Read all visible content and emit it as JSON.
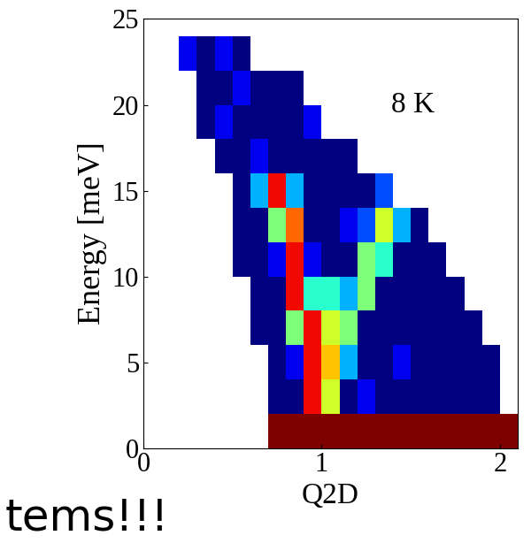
{
  "chart_data": {
    "type": "heatmap",
    "x_label": "Q2D",
    "y_label": "Energy [meV]",
    "annotations": [
      "8 K"
    ],
    "caption": "tems!!!",
    "color": "jet",
    "xlim": [
      0,
      2.1
    ],
    "ylim": [
      0,
      25
    ],
    "xticks": [
      0,
      1,
      2
    ],
    "yticks": [
      0,
      5,
      10,
      15,
      20,
      25
    ],
    "x_edges": [
      0,
      0.1,
      0.2,
      0.3,
      0.4,
      0.5,
      0.6,
      0.7,
      0.8,
      0.9,
      1.0,
      1.1,
      1.2,
      1.3,
      1.4,
      1.5,
      1.6,
      1.7,
      1.8,
      1.9,
      2.0,
      2.1
    ],
    "y_edges": [
      0,
      2,
      4,
      6,
      8,
      10,
      12,
      14,
      16,
      18,
      20,
      22,
      24
    ],
    "color_range": [
      0,
      10
    ],
    "cells": [
      [
        null,
        null,
        null,
        null,
        null,
        null,
        null,
        10,
        10,
        10,
        10,
        10,
        10,
        10,
        10,
        10,
        10,
        10,
        10,
        10,
        10
      ],
      [
        null,
        null,
        null,
        null,
        null,
        null,
        null,
        0,
        0,
        9,
        6,
        0,
        1,
        0,
        0,
        0,
        0,
        0,
        0,
        0,
        null
      ],
      [
        null,
        null,
        null,
        null,
        null,
        null,
        null,
        0,
        1,
        9,
        7,
        3,
        0,
        0,
        1,
        0,
        0,
        0,
        0,
        0,
        null
      ],
      [
        null,
        null,
        null,
        null,
        null,
        null,
        0,
        0,
        5,
        9,
        6,
        5,
        0,
        0,
        0,
        0,
        0,
        0,
        0,
        null,
        null
      ],
      [
        null,
        null,
        null,
        null,
        null,
        null,
        0,
        0,
        9,
        4,
        4,
        3,
        5,
        0,
        0,
        0,
        0,
        0,
        null,
        null,
        null
      ],
      [
        null,
        null,
        null,
        null,
        null,
        0,
        0,
        1,
        9,
        1,
        0,
        0,
        5,
        4,
        0,
        0,
        0,
        null,
        null,
        null,
        null
      ],
      [
        null,
        null,
        null,
        null,
        null,
        0,
        0,
        5,
        8,
        0,
        0,
        1,
        2,
        6,
        3,
        0,
        null,
        null,
        null,
        null,
        null
      ],
      [
        null,
        null,
        null,
        null,
        null,
        0,
        3,
        9,
        3,
        0,
        0,
        0,
        0,
        2,
        null,
        null,
        null,
        null,
        null,
        null,
        null
      ],
      [
        null,
        null,
        null,
        null,
        0,
        0,
        1,
        0,
        0,
        0,
        0,
        0,
        null,
        null,
        null,
        null,
        null,
        null,
        null,
        null,
        null
      ],
      [
        null,
        null,
        null,
        0,
        1,
        0,
        0,
        0,
        0,
        1,
        null,
        null,
        null,
        null,
        null,
        null,
        null,
        null,
        null,
        null,
        null
      ],
      [
        null,
        null,
        null,
        0,
        0,
        1,
        0,
        0,
        0,
        null,
        null,
        null,
        null,
        null,
        null,
        null,
        null,
        null,
        null,
        null,
        null
      ],
      [
        null,
        null,
        1,
        0,
        1,
        0,
        null,
        null,
        null,
        null,
        null,
        null,
        null,
        null,
        null,
        null,
        null,
        null,
        null,
        null,
        null
      ]
    ]
  }
}
